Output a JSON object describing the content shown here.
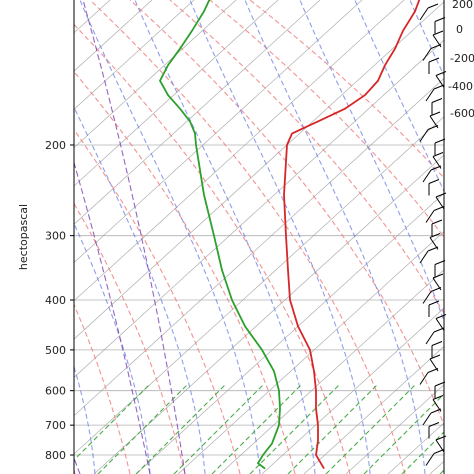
{
  "chart_data": {
    "type": "line",
    "chart_kind": "skew-T log-P diagram",
    "ylabel": "hectopascal",
    "ylim": [
      850,
      100
    ],
    "yscale": "log",
    "y_ticks": [
      200,
      300,
      400,
      500,
      600,
      700,
      800
    ],
    "y_tick_labels": [
      "200",
      "300",
      "400",
      "500",
      "600",
      "700",
      "800"
    ],
    "grid": true,
    "annotations": [
      "200",
      "0",
      "-200",
      "-400",
      "-600"
    ],
    "colors": {
      "temperature": "#d62728",
      "dewpoint": "#2ca02c",
      "dry_adiabats": "#f08080",
      "moist_adiabats": "#6b7fe0",
      "mixing_ratio": "#2ca02c",
      "isotherms": "#b0b0b0",
      "isobars": "#b0b0b0",
      "wind_barbs": "#000000",
      "hodograph_lines": "#7a3fb0"
    },
    "series": [
      {
        "key": "temperature",
        "p": [
          850,
          800,
          750,
          700,
          650,
          600,
          550,
          500,
          450,
          400,
          350,
          300,
          250,
          200,
          190,
          180,
          170,
          160,
          150,
          140,
          130,
          120,
          110,
          100
        ],
        "x": [
          324,
          316,
          318,
          318,
          316,
          316,
          314,
          310,
          298,
          290,
          288,
          286,
          284,
          287,
          292,
          318,
          345,
          365,
          378,
          385,
          395,
          403,
          415,
          423
        ]
      },
      {
        "key": "dewpoint",
        "p": [
          850,
          830,
          800,
          760,
          700,
          650,
          600,
          550,
          500,
          450,
          400,
          350,
          300,
          250,
          200,
          190,
          180,
          170,
          160,
          150,
          140,
          130,
          120,
          110,
          100
        ],
        "x": [
          265,
          258,
          263,
          272,
          279,
          280,
          279,
          274,
          262,
          245,
          232,
          222,
          214,
          204,
          196,
          195,
          190,
          180,
          168,
          160,
          168,
          180,
          192,
          204,
          214
        ]
      }
    ]
  }
}
